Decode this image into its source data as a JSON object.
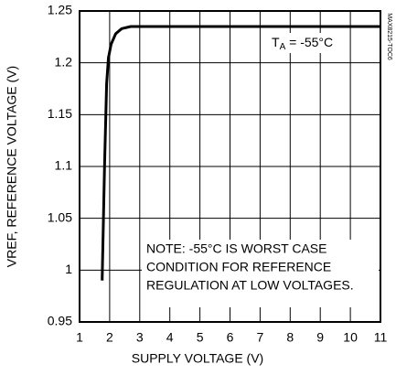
{
  "chart_data": {
    "type": "line",
    "x_label": "SUPPLY VOLTAGE (V)",
    "y_label": "VREF, REFERENCE VOLTAGE (V)",
    "xlim": [
      1,
      11
    ],
    "ylim": [
      0.95,
      1.25
    ],
    "xticks": [
      1,
      2,
      3,
      4,
      5,
      6,
      7,
      8,
      9,
      10,
      11
    ],
    "yticks": [
      0.95,
      1,
      1.05,
      1.1,
      1.15,
      1.2,
      1.25
    ],
    "grid": true,
    "series": [
      {
        "color": "#000000",
        "x": [
          1.75,
          1.83,
          1.9,
          1.96,
          2.05,
          2.2,
          2.4,
          2.7,
          3,
          11
        ],
        "values": [
          0.99,
          1.1,
          1.18,
          1.205,
          1.218,
          1.228,
          1.233,
          1.235,
          1.235,
          1.235
        ]
      }
    ],
    "condition": {
      "symbol": "T",
      "subscript": "A",
      "text": " = -55°C"
    },
    "note": [
      "NOTE: -55°C IS WORST CASE",
      "CONDITION FOR REFERENCE",
      "REGULATION AT LOW VOLTAGES."
    ],
    "figure_id": "MAX8215-TOC6"
  }
}
